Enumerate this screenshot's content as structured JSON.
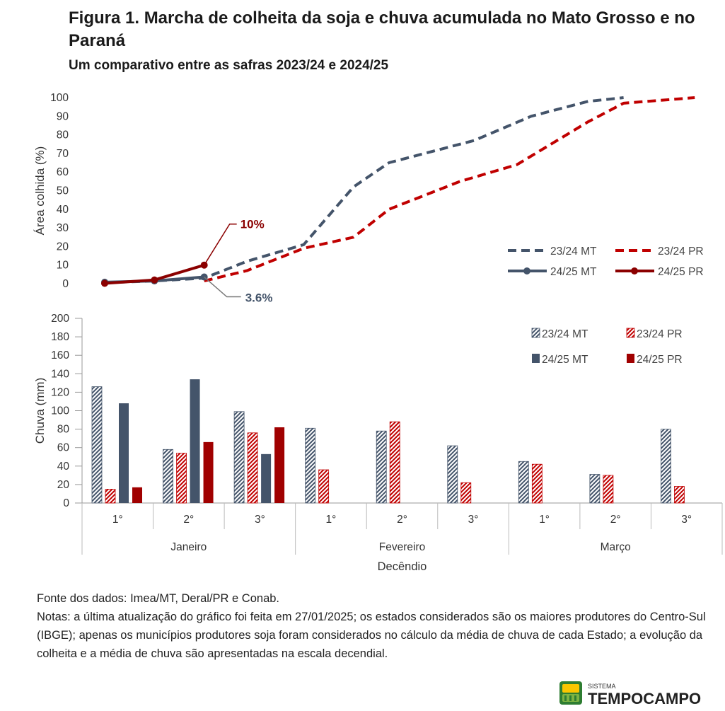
{
  "header": {
    "title": "Figura 1. Marcha de colheita da soja e chuva acumulada no Mato Grosso e no Paraná",
    "subtitle": "Um comparativo entre as safras 2023/24 e 2024/25"
  },
  "chart_data": [
    {
      "type": "line",
      "ylabel": "Área colhida (%)",
      "ylim": [
        0,
        100
      ],
      "yticks": [
        "0",
        "10",
        "20",
        "30",
        "40",
        "50",
        "60",
        "70",
        "80",
        "90",
        "100"
      ],
      "x_positions": [
        "Jan 1°",
        "Jan 2°",
        "Jan 3°",
        "Fev 1°",
        "Fev 2°",
        "Fev 3°",
        "Mar 1°",
        "Mar 2°",
        "Mar 3°"
      ],
      "series": [
        {
          "name": "23/24 MT",
          "color": "#44546A",
          "style": "dashed",
          "x": [
            0,
            0.7,
            1.4,
            2.0,
            2.8,
            3.5,
            4.0,
            5.2,
            6.0,
            6.8,
            7.3
          ],
          "y": [
            0.5,
            1.5,
            3.0,
            12,
            21,
            52,
            65,
            77,
            90,
            98,
            100
          ]
        },
        {
          "name": "23/24 PR",
          "color": "#C00000",
          "style": "dashed",
          "x": [
            1.4,
            2.0,
            2.8,
            3.5,
            4.0,
            5.0,
            5.8,
            6.8,
            7.3,
            8.3
          ],
          "y": [
            1.5,
            7,
            19,
            25,
            40,
            55,
            64,
            87,
            97,
            100
          ]
        },
        {
          "name": "24/25 MT",
          "color": "#44546A",
          "style": "solid",
          "x": [
            0,
            0.7,
            1.4
          ],
          "y": [
            0.8,
            1.5,
            3.6
          ]
        },
        {
          "name": "24/25 PR",
          "color": "#8B0000",
          "style": "solid",
          "x": [
            0,
            0.7,
            1.4
          ],
          "y": [
            0.2,
            2.0,
            10
          ]
        }
      ],
      "annotations": [
        {
          "text": "10%",
          "series": "24/25 PR",
          "color": "#8B0000"
        },
        {
          "text": "3.6%",
          "series": "24/25 MT",
          "color": "#44546A"
        }
      ],
      "legend": "right"
    },
    {
      "type": "bar",
      "ylabel": "Chuva (mm)",
      "xlabel": "Decêndio",
      "ylim": [
        0,
        200
      ],
      "yticks": [
        "0",
        "20",
        "40",
        "60",
        "80",
        "100",
        "120",
        "140",
        "160",
        "180",
        "200"
      ],
      "categories": [
        "1°",
        "2°",
        "3°",
        "1°",
        "2°",
        "3°",
        "1°",
        "2°",
        "3°"
      ],
      "groups": [
        "Janeiro",
        "Fevereiro",
        "Março"
      ],
      "series": [
        {
          "name": "23/24 MT",
          "color": "#44546A",
          "pattern": "hatched",
          "values": [
            126,
            58,
            99,
            81,
            78,
            62,
            45,
            31,
            80
          ]
        },
        {
          "name": "23/24 PR",
          "color": "#C00000",
          "pattern": "hatched",
          "values": [
            15,
            54,
            76,
            36,
            88,
            22,
            42,
            30,
            18
          ]
        },
        {
          "name": "24/25 MT",
          "color": "#44546A",
          "pattern": "solid",
          "values": [
            108,
            134,
            53,
            null,
            null,
            null,
            null,
            null,
            null
          ]
        },
        {
          "name": "24/25 PR",
          "color": "#A00000",
          "pattern": "solid",
          "values": [
            17,
            66,
            82,
            null,
            null,
            null,
            null,
            null,
            null
          ]
        }
      ],
      "legend": "top-right"
    }
  ],
  "notes": {
    "source": "Fonte dos dados: Imea/MT, Deral/PR e Conab.",
    "text": "Notas: a última atualização do gráfico foi feita em 27/01/2025; os estados considerados são os maiores produtores do Centro-Sul (IBGE); apenas os municípios produtores soja foram considerados no cálculo da média de chuva de cada Estado; a evolução da colheita e a média de chuva são apresentadas na escala decendial."
  },
  "logo": {
    "small_text": "SISTEMA",
    "brand_text": "TEMPOCAMPO"
  }
}
